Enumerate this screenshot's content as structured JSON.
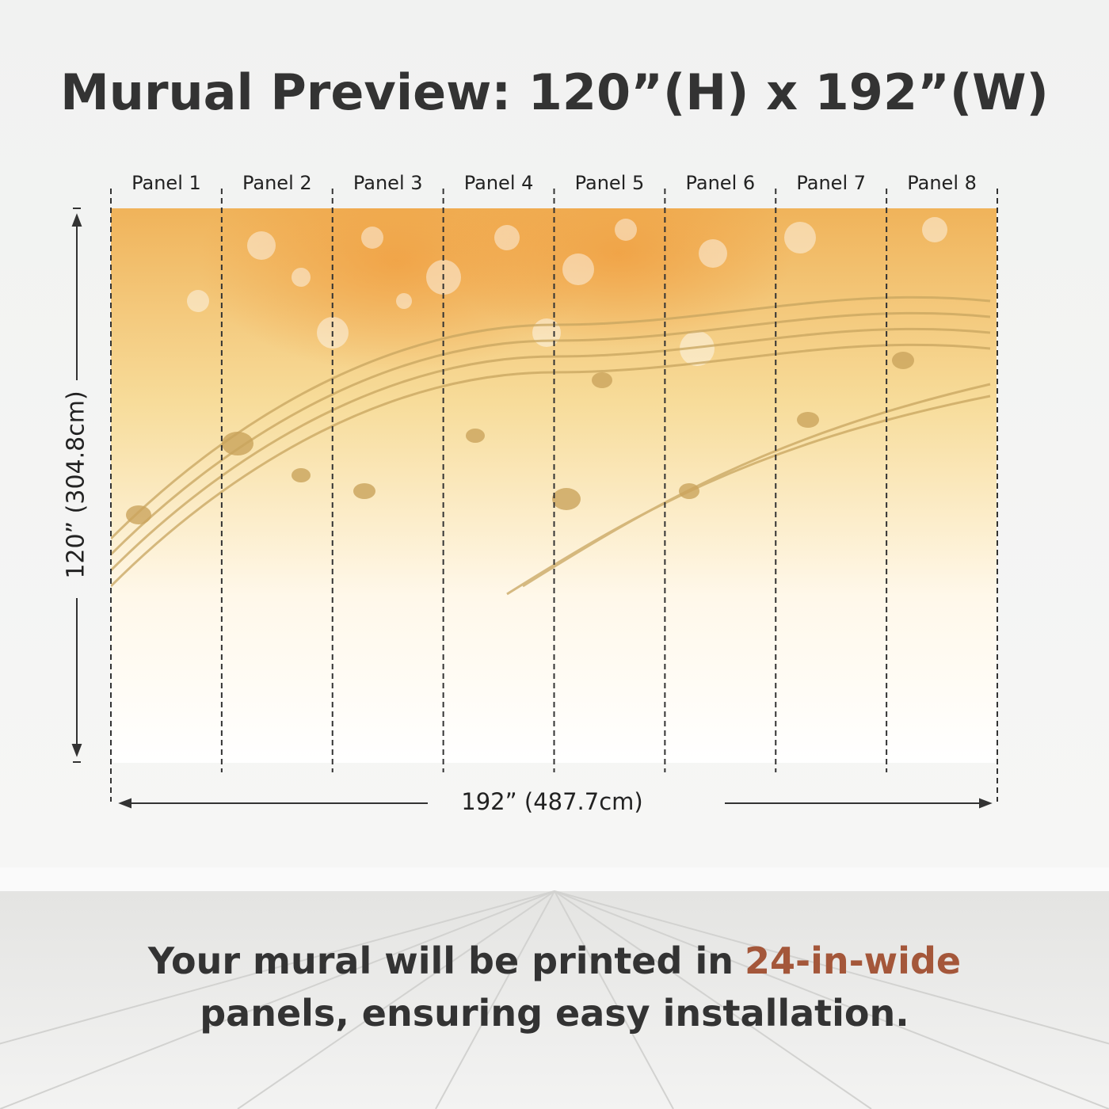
{
  "header": {
    "title": "Murual Preview: 120”(H) x 192”(W)"
  },
  "panels": [
    "Panel 1",
    "Panel 2",
    "Panel 3",
    "Panel 4",
    "Panel 5",
    "Panel 6",
    "Panel 7",
    "Panel 8"
  ],
  "dimensions": {
    "height": "120” (304.8cm)",
    "width": "192” (487.7cm)"
  },
  "footer": {
    "line1": "Your mural will be printed in",
    "highlight": "24-in-wide",
    "line2": "panels, ensuring easy installation."
  }
}
